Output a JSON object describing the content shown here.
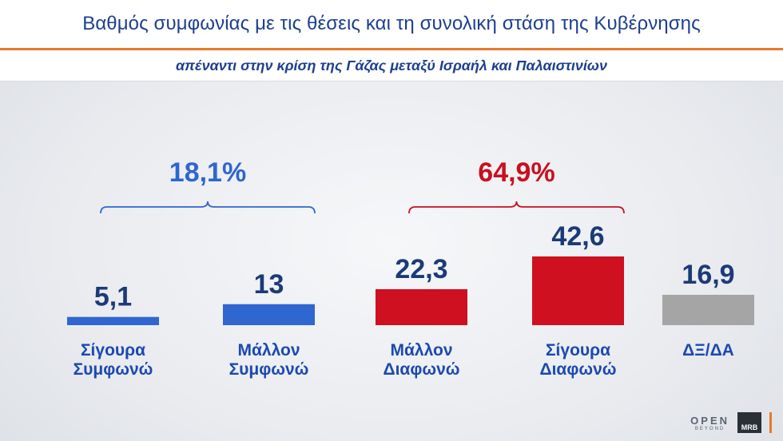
{
  "header": {
    "title": "Βαθμός συμφωνίας με τις θέσεις και τη συνολική στάση της Κυβέρνησης",
    "subtitle": "απέναντι στην κρίση της Γάζας μεταξύ Ισραήλ και Παλαιστινίων"
  },
  "chart_data": {
    "type": "bar",
    "categories": [
      [
        "Σίγουρα",
        "Συμφωνώ"
      ],
      [
        "Μάλλον",
        "Συμφωνώ"
      ],
      [
        "Μάλλον",
        "Διαφωνώ"
      ],
      [
        "Σίγουρα",
        "Διαφωνώ"
      ],
      [
        "ΔΞ/ΔΑ"
      ]
    ],
    "values": [
      5.1,
      13,
      22.3,
      42.6,
      16.9
    ],
    "value_labels": [
      "5,1",
      "13",
      "22,3",
      "42,6",
      "16,9"
    ],
    "colors": [
      "#2f66cf",
      "#2f66cf",
      "#cf1020",
      "#cf1020",
      "#a5a5a5"
    ],
    "groups": [
      {
        "label": "18,1%",
        "from": 0,
        "to": 1,
        "color": "#2f66cf"
      },
      {
        "label": "64,9%",
        "from": 2,
        "to": 3,
        "color": "#c8101f"
      }
    ],
    "value_label_color": "#1b3a78",
    "category_label_color": "#1c48b0"
  },
  "logos": {
    "open": "OPEN",
    "open_sub": "BEYOND",
    "mrb": "MRB"
  }
}
